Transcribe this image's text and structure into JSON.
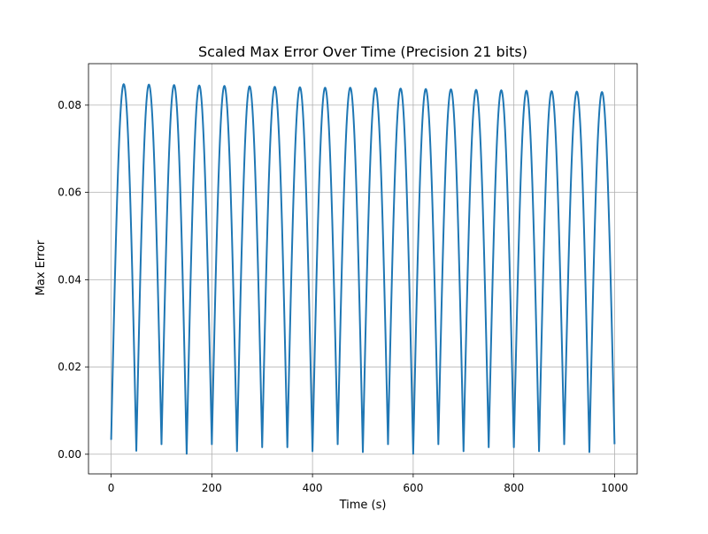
{
  "chart_data": {
    "type": "line",
    "title": "Scaled Max Error Over Time (Precision 21 bits)",
    "xlabel": "Time (s)",
    "ylabel": "Max Error",
    "xlim": [
      -45,
      1045
    ],
    "ylim": [
      -0.0045,
      0.0895
    ],
    "xticks": [
      0,
      200,
      400,
      600,
      800,
      1000
    ],
    "yticks": [
      0.0,
      0.02,
      0.04,
      0.06,
      0.08
    ],
    "xtick_labels": [
      "0",
      "200",
      "400",
      "600",
      "800",
      "1000"
    ],
    "ytick_labels": [
      "0.00",
      "0.02",
      "0.04",
      "0.06",
      "0.08"
    ],
    "grid": true,
    "series": [
      {
        "color": "#1f77b4",
        "x_start": 0,
        "x_end": 1000,
        "period_s": 50,
        "start_value": 0.0033,
        "end_value": 0.0023,
        "peaks": [
          {
            "x": 25,
            "y": 0.0848
          },
          {
            "x": 75,
            "y": 0.0847
          },
          {
            "x": 125,
            "y": 0.0846
          },
          {
            "x": 175,
            "y": 0.0845
          },
          {
            "x": 225,
            "y": 0.0844
          },
          {
            "x": 275,
            "y": 0.0843
          },
          {
            "x": 325,
            "y": 0.0842
          },
          {
            "x": 375,
            "y": 0.0841
          },
          {
            "x": 425,
            "y": 0.084
          },
          {
            "x": 475,
            "y": 0.084
          },
          {
            "x": 525,
            "y": 0.0839
          },
          {
            "x": 575,
            "y": 0.0838
          },
          {
            "x": 625,
            "y": 0.0837
          },
          {
            "x": 675,
            "y": 0.0836
          },
          {
            "x": 725,
            "y": 0.0835
          },
          {
            "x": 775,
            "y": 0.0834
          },
          {
            "x": 825,
            "y": 0.0833
          },
          {
            "x": 875,
            "y": 0.0832
          },
          {
            "x": 925,
            "y": 0.0831
          },
          {
            "x": 975,
            "y": 0.083
          }
        ],
        "troughs": [
          {
            "x": 50,
            "y": 0.0008
          },
          {
            "x": 100,
            "y": 0.0023
          },
          {
            "x": 150,
            "y": 0.0001
          },
          {
            "x": 200,
            "y": 0.0023
          },
          {
            "x": 250,
            "y": 0.0007
          },
          {
            "x": 300,
            "y": 0.0016
          },
          {
            "x": 350,
            "y": 0.0016
          },
          {
            "x": 400,
            "y": 0.0007
          },
          {
            "x": 450,
            "y": 0.0023
          },
          {
            "x": 500,
            "y": 0.0005
          },
          {
            "x": 550,
            "y": 0.0023
          },
          {
            "x": 600,
            "y": 0.0001
          },
          {
            "x": 650,
            "y": 0.0023
          },
          {
            "x": 700,
            "y": 0.0007
          },
          {
            "x": 750,
            "y": 0.0016
          },
          {
            "x": 800,
            "y": 0.0016
          },
          {
            "x": 850,
            "y": 0.0007
          },
          {
            "x": 900,
            "y": 0.0023
          },
          {
            "x": 950,
            "y": 0.0005
          }
        ]
      }
    ]
  }
}
